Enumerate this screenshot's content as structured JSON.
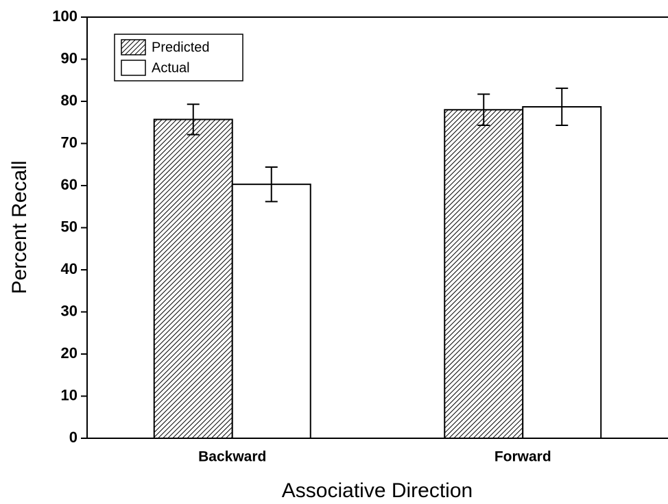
{
  "chart_data": {
    "type": "bar",
    "xlabel": "Associative Direction",
    "ylabel": "Percent Recall",
    "categories": [
      "Backward",
      "Forward"
    ],
    "series": [
      {
        "name": "Predicted",
        "color": "#ffffff",
        "pattern": "hatch",
        "values": [
          75.7,
          78.0
        ],
        "errors": [
          3.6,
          3.7
        ]
      },
      {
        "name": "Actual",
        "color": "#ffffff",
        "values": [
          60.3,
          78.7
        ],
        "errors": [
          4.1,
          4.4
        ]
      }
    ],
    "ylim": [
      0,
      100
    ],
    "yticks": [
      0,
      10,
      20,
      30,
      40,
      50,
      60,
      70,
      80,
      90,
      100
    ],
    "legend": "upper left"
  }
}
